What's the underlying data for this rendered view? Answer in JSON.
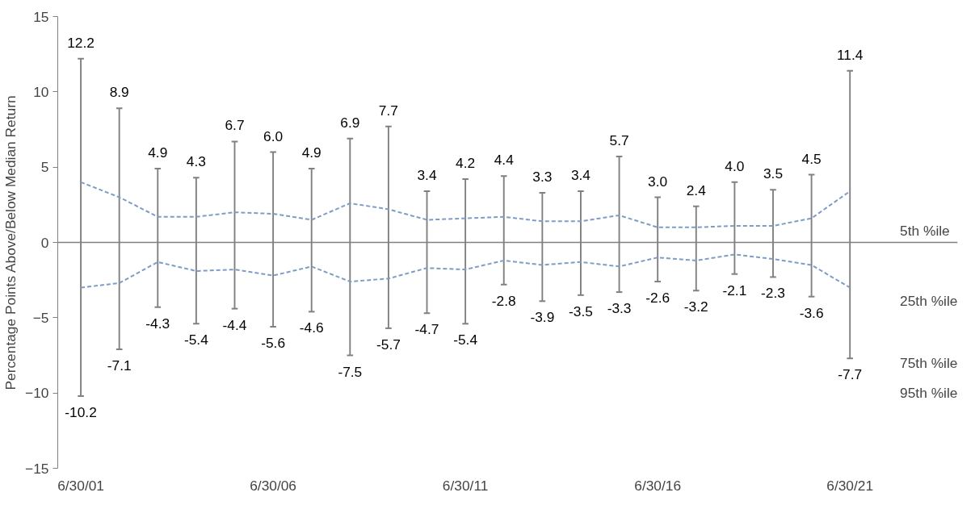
{
  "chart_data": {
    "type": "bar",
    "stacked": true,
    "ylabel": "Percentage Points Above/Below Median Return",
    "categories": [
      "6/30/01",
      null,
      null,
      null,
      null,
      "6/30/06",
      null,
      null,
      null,
      null,
      "6/30/11",
      null,
      null,
      null,
      null,
      "6/30/16",
      null,
      null,
      null,
      null,
      "6/30/21"
    ],
    "series": [
      {
        "color": "#808080",
        "values": [
          12.2,
          8.9,
          4.9,
          4.3,
          6.7,
          6.0,
          4.9,
          6.9,
          7.7,
          3.4,
          4.2,
          4.4,
          3.3,
          3.4,
          5.7,
          3.0,
          2.4,
          4.0,
          3.5,
          4.5,
          11.4
        ],
        "value_labels": [
          "12.2",
          "8.9",
          "4.9",
          "4.3",
          "6.7",
          "6.0",
          "4.9",
          "6.9",
          "7.7",
          "3.4",
          "4.2",
          "4.4",
          "3.3",
          "3.4",
          "5.7",
          "3.0",
          "2.4",
          "4.0",
          "3.5",
          "4.5",
          "11.4"
        ]
      },
      {
        "color": "#808080",
        "values": [
          -10.2,
          -7.1,
          -4.3,
          -5.4,
          -4.4,
          -5.6,
          -4.6,
          -7.5,
          -5.7,
          -4.7,
          -5.4,
          -2.8,
          -3.9,
          -3.5,
          -3.3,
          -2.6,
          -3.2,
          -2.1,
          -2.3,
          -3.6,
          -7.7
        ],
        "value_labels": [
          "-10.2",
          "-7.1",
          "-4.3",
          "-5.4",
          "-4.4",
          "-5.6",
          "-4.6",
          "-7.5",
          "-5.7",
          "-4.7",
          "-5.4",
          "-2.8",
          "-3.9",
          "-3.5",
          "-3.3",
          "-2.6",
          "-3.2",
          "-2.1",
          "-2.3",
          "-3.6",
          "-7.7"
        ]
      },
      {
        "type": "line",
        "line_style": "dashed",
        "color": "#7f9cc6",
        "values": [
          4.0,
          3.0,
          1.7,
          1.7,
          2.0,
          1.9,
          1.5,
          2.6,
          2.2,
          1.5,
          1.6,
          1.7,
          1.4,
          1.4,
          1.8,
          1.0,
          1.0,
          1.1,
          1.1,
          1.6,
          3.4
        ]
      },
      {
        "type": "line",
        "line_style": "dashed",
        "color": "#7f9cc6",
        "values": [
          -3.0,
          -2.7,
          -1.3,
          -1.9,
          -1.8,
          -2.2,
          -1.6,
          -2.6,
          -2.4,
          -1.7,
          -1.8,
          -1.2,
          -1.5,
          -1.3,
          -1.6,
          -1.0,
          -1.2,
          -0.8,
          -1.1,
          -1.5,
          -3.0
        ]
      }
    ],
    "ylim": [
      -15,
      15
    ],
    "yticks": [
      -15,
      -10,
      -5,
      0,
      5,
      10,
      15
    ],
    "ref_lines": [
      {
        "axis": "y",
        "value": 0,
        "color": "#808080"
      }
    ],
    "annotations": [
      "5th %ile",
      "25th %ile",
      "75th %ile",
      "95th %ile"
    ]
  }
}
